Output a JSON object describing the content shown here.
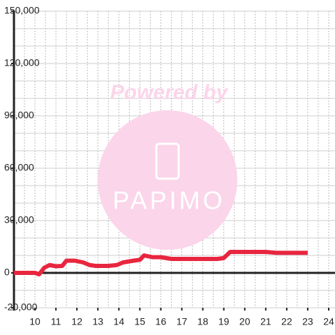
{
  "chart_data": {
    "type": "line",
    "watermark": {
      "title": "Powered by",
      "logo": "PAPIMO"
    },
    "x": [
      9.0,
      10.0,
      10.2,
      10.45,
      10.7,
      11.0,
      11.3,
      11.5,
      11.9,
      12.3,
      12.6,
      12.9,
      13.5,
      13.9,
      14.2,
      14.7,
      15.0,
      15.2,
      15.6,
      16.0,
      16.5,
      17.0,
      18.0,
      18.7,
      19.0,
      19.3,
      20.0,
      21.0,
      21.5,
      23.0
    ],
    "series": [
      {
        "color": "#e8263f",
        "values": [
          0,
          0,
          -800,
          3000,
          4500,
          3800,
          4000,
          7000,
          7000,
          6000,
          4500,
          4000,
          4000,
          4500,
          6000,
          7000,
          7500,
          10000,
          9000,
          9000,
          8000,
          8000,
          8000,
          8000,
          8500,
          12000,
          12000,
          12000,
          11500,
          11500
        ]
      }
    ],
    "xlim": [
      9,
      24.3
    ],
    "xticks": [
      10,
      11,
      12,
      13,
      14,
      15,
      16,
      17,
      18,
      19,
      20,
      21,
      22,
      23,
      24
    ],
    "xgrid": [
      9.5,
      10,
      10.5,
      11,
      11.5,
      12,
      12.5,
      13,
      13.5,
      14,
      14.5,
      15,
      15.5,
      16,
      16.5,
      17,
      17.5,
      18,
      18.5,
      19,
      19.5,
      20,
      20.5,
      21,
      21.5,
      22,
      22.5,
      23,
      23.5,
      24
    ],
    "ylim": [
      -20000,
      150000
    ],
    "yticks": [
      {
        "value": -20000,
        "label": "-20,000"
      },
      0,
      {
        "value": 30000,
        "label": "30,000"
      },
      {
        "value": 60000,
        "label": "60,000"
      },
      {
        "value": 90000,
        "label": "90,000"
      },
      {
        "value": 120000,
        "label": "120,000"
      },
      {
        "value": 150000,
        "label": "150,000"
      }
    ],
    "ygrid": [
      -20000,
      -10000,
      10000,
      20000,
      30000,
      40000,
      50000,
      60000,
      70000,
      80000,
      90000,
      100000,
      110000,
      120000,
      130000,
      140000,
      150000
    ],
    "grid": true
  }
}
